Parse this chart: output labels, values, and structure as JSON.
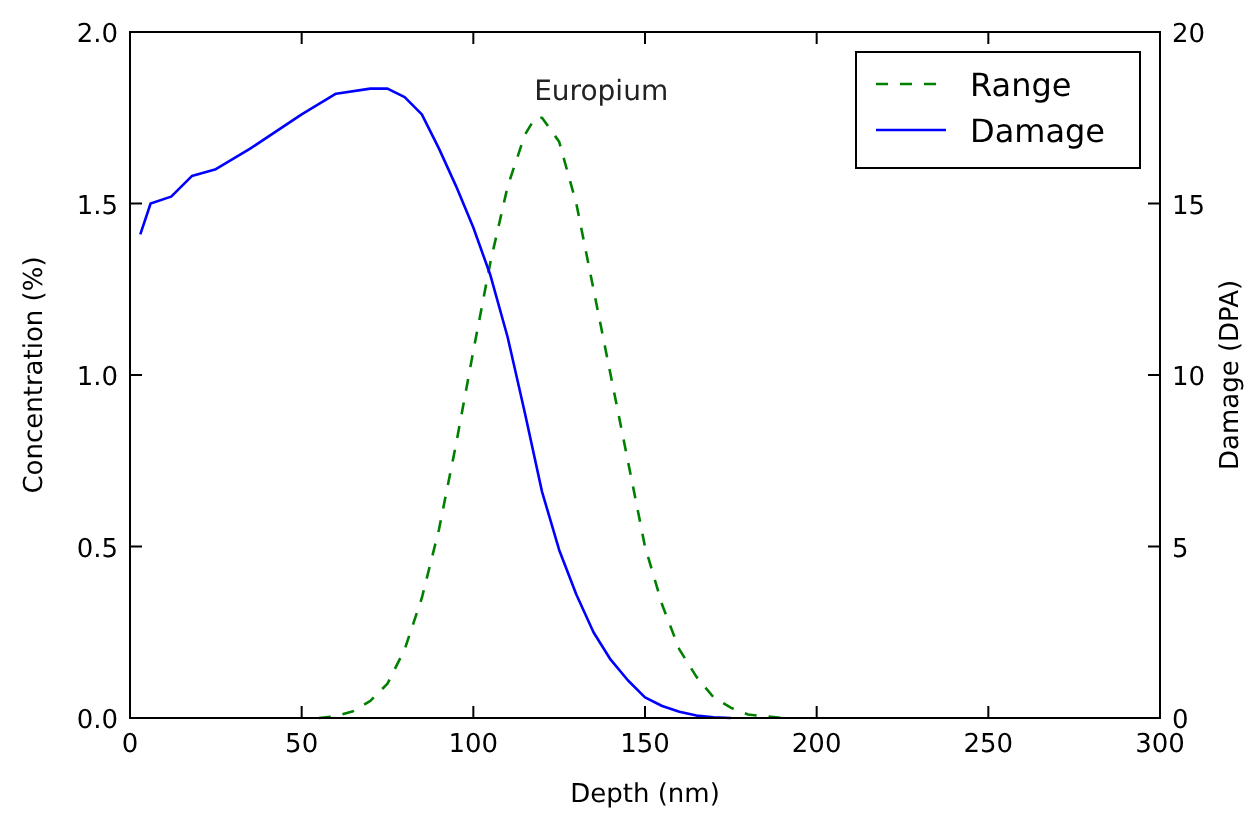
{
  "chart_data": {
    "type": "line",
    "xlabel": "Depth (nm)",
    "ylabel": "Concentration (%)",
    "y2label": "Damage (DPA)",
    "annotations": [
      "Europium"
    ],
    "xlim": [
      0,
      300
    ],
    "xticks": [
      0,
      50,
      100,
      150,
      200,
      250,
      300
    ],
    "ylim": [
      0,
      2
    ],
    "yticks": [
      {
        "value": 0,
        "label": "0.0"
      },
      {
        "value": 0.5,
        "label": "0.5"
      },
      {
        "value": 1,
        "label": "1.0"
      },
      {
        "value": 1.5,
        "label": "1.5"
      },
      {
        "value": 2,
        "label": "2.0"
      }
    ],
    "y2lim": [
      0,
      20
    ],
    "y2ticks": [
      0,
      5,
      10,
      15,
      20
    ],
    "legend": "top right",
    "grid": false,
    "series": [
      {
        "name": "Range",
        "color": "#008000",
        "line_style": "dashed",
        "x": [
          55,
          60,
          65,
          70,
          75,
          80,
          85,
          90,
          95,
          100,
          105,
          110,
          115,
          118,
          120,
          125,
          130,
          135,
          140,
          145,
          150,
          155,
          160,
          165,
          170,
          175,
          180,
          185,
          190
        ],
        "values": [
          0,
          0.005,
          0.02,
          0.05,
          0.1,
          0.2,
          0.35,
          0.55,
          0.8,
          1.07,
          1.33,
          1.55,
          1.7,
          1.75,
          1.75,
          1.68,
          1.5,
          1.25,
          1.0,
          0.75,
          0.5,
          0.33,
          0.2,
          0.12,
          0.06,
          0.03,
          0.01,
          0.005,
          0
        ]
      },
      {
        "name": "Damage",
        "color": "#0000ff",
        "line_style": "solid",
        "axis": "y2",
        "x": [
          3,
          6,
          12,
          18,
          25,
          35,
          50,
          60,
          70,
          75,
          80,
          85,
          90,
          95,
          100,
          105,
          110,
          115,
          120,
          125,
          130,
          135,
          140,
          145,
          150,
          155,
          160,
          165,
          170,
          175
        ],
        "values": [
          14.1,
          15.0,
          15.2,
          15.8,
          16.0,
          16.6,
          17.6,
          18.2,
          18.35,
          18.35,
          18.1,
          17.6,
          16.6,
          15.5,
          14.3,
          12.9,
          11.1,
          8.9,
          6.6,
          4.9,
          3.6,
          2.5,
          1.7,
          1.1,
          0.6,
          0.35,
          0.18,
          0.07,
          0.02,
          0
        ]
      }
    ]
  }
}
